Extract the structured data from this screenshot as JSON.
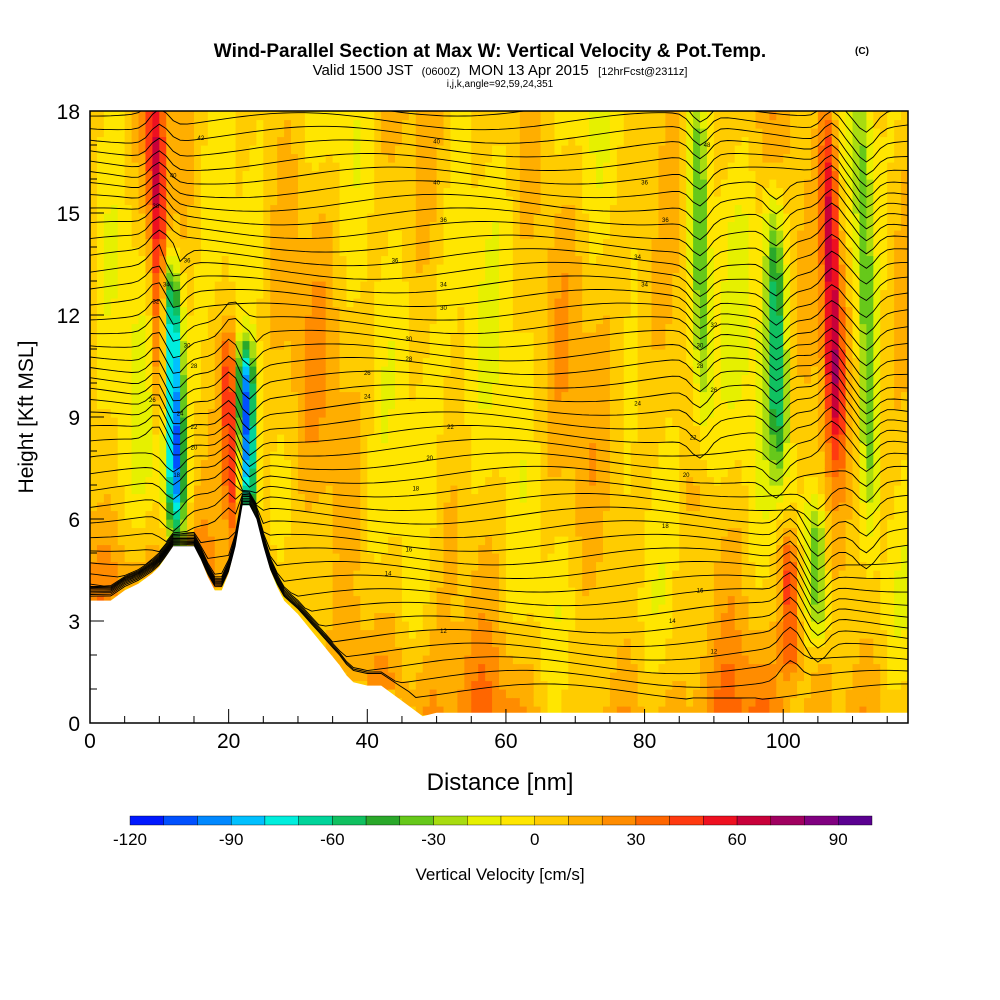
{
  "chart_data": {
    "type": "heatmap",
    "title": "Wind-Parallel Section at Max W: Vertical Velocity & Pot.Temp.",
    "title_mark": "(C)",
    "subtitle_main_1": "Valid 1500 JST",
    "subtitle_utc": "(0600Z)",
    "subtitle_main_2": "MON 13 Apr 2015",
    "subtitle_fcst": "[12hrFcst@2311z]",
    "subtitle_line2": "i,j,k,angle=92,59,24,351",
    "xlabel": "Distance [nm]",
    "ylabel": "Height [Kft MSL]",
    "xlim": [
      0,
      118
    ],
    "ylim": [
      0,
      18
    ],
    "x_ticks": [
      0,
      20,
      40,
      60,
      80,
      100
    ],
    "x_tick_labels": [
      "0",
      "20",
      "40",
      "60",
      "80",
      "100"
    ],
    "y_ticks": [
      0,
      3,
      6,
      9,
      12,
      15,
      18
    ],
    "y_tick_labels": [
      "0",
      "3",
      "6",
      "9",
      "12",
      "15",
      "18"
    ],
    "colorbar": {
      "label": "Vertical Velocity [cm/s]",
      "range": [
        -120,
        100
      ],
      "step": 10,
      "tick_values": [
        -120,
        -90,
        -60,
        -30,
        0,
        30,
        60,
        90
      ],
      "tick_labels": [
        "-120",
        "-90",
        "-60",
        "-30",
        "0",
        "30",
        "60",
        "90"
      ],
      "colors": [
        "#0018ff",
        "#0050ff",
        "#0088ff",
        "#00c0ff",
        "#00eedd",
        "#00d49a",
        "#10c060",
        "#2aa82a",
        "#66c81a",
        "#a8dc10",
        "#e6f000",
        "#ffe600",
        "#ffcc00",
        "#ffae00",
        "#ff8c00",
        "#ff6600",
        "#ff3a10",
        "#ee1020",
        "#c8003a",
        "#a00060",
        "#800080",
        "#5a0090"
      ]
    },
    "velocity_features": [
      {
        "kind": "updraft",
        "x": 10,
        "y_range": [
          9,
          18
        ],
        "peak": 60
      },
      {
        "kind": "downdraft",
        "x": 12,
        "y_range": [
          6,
          13
        ],
        "peak": -110
      },
      {
        "kind": "updraft",
        "x": 20.5,
        "y_range": [
          6.5,
          11
        ],
        "peak": 60
      },
      {
        "kind": "downdraft",
        "x": 22.5,
        "y_range": [
          6.5,
          10.5
        ],
        "peak": -110
      },
      {
        "kind": "downdraft",
        "x": 88,
        "y_range": [
          9,
          18
        ],
        "peak": -40
      },
      {
        "kind": "downdraft",
        "x": 99,
        "y_range": [
          8,
          15
        ],
        "peak": -50
      },
      {
        "kind": "updraft",
        "x": 107,
        "y_range": [
          8.5,
          17.5
        ],
        "peak": 65
      },
      {
        "kind": "downdraft",
        "x": 112,
        "y_range": [
          6,
          18
        ],
        "peak": -40
      },
      {
        "kind": "updraft",
        "x": 101,
        "y_range": [
          2,
          5
        ],
        "peak": 45
      },
      {
        "kind": "downdraft",
        "x": 105,
        "y_range": [
          3,
          6
        ],
        "peak": -40
      }
    ],
    "terrain": {
      "x": [
        0,
        3,
        5,
        7,
        9,
        10,
        11,
        12,
        15,
        16,
        17,
        18,
        19,
        20,
        21,
        22,
        23,
        24,
        25,
        26,
        27,
        28,
        30,
        32,
        34,
        36,
        37,
        38,
        40,
        42,
        44,
        46,
        48,
        50,
        52,
        54,
        118
      ],
      "y": [
        3.6,
        3.6,
        3.9,
        4.1,
        4.4,
        4.6,
        4.9,
        5.2,
        5.2,
        4.8,
        4.3,
        3.9,
        3.9,
        4.4,
        5.2,
        6.4,
        6.4,
        6.0,
        5.2,
        4.5,
        4.0,
        3.6,
        3.2,
        2.7,
        2.2,
        1.7,
        1.4,
        1.2,
        1.1,
        1.1,
        0.8,
        0.5,
        0.2,
        0.3,
        0.3,
        0.3,
        0.3
      ]
    },
    "isentrope_labels": [
      {
        "x": 16,
        "y": 17.2,
        "text": "42"
      },
      {
        "x": 50,
        "y": 17.1,
        "text": "40"
      },
      {
        "x": 89,
        "y": 17.0,
        "text": "48"
      },
      {
        "x": 12,
        "y": 16.1,
        "text": "40"
      },
      {
        "x": 50,
        "y": 15.9,
        "text": "40"
      },
      {
        "x": 80,
        "y": 15.9,
        "text": "36"
      },
      {
        "x": 9.5,
        "y": 15.2,
        "text": "38"
      },
      {
        "x": 51,
        "y": 14.8,
        "text": "36"
      },
      {
        "x": 83,
        "y": 14.8,
        "text": "36"
      },
      {
        "x": 14,
        "y": 13.6,
        "text": "36"
      },
      {
        "x": 44,
        "y": 13.6,
        "text": "36"
      },
      {
        "x": 79,
        "y": 13.7,
        "text": "34"
      },
      {
        "x": 11,
        "y": 12.9,
        "text": "34"
      },
      {
        "x": 51,
        "y": 12.9,
        "text": "34"
      },
      {
        "x": 80,
        "y": 12.9,
        "text": "34"
      },
      {
        "x": 9.5,
        "y": 12.4,
        "text": "32"
      },
      {
        "x": 51,
        "y": 12.2,
        "text": "30"
      },
      {
        "x": 90,
        "y": 11.7,
        "text": "32"
      },
      {
        "x": 14,
        "y": 11.1,
        "text": "30"
      },
      {
        "x": 46,
        "y": 11.3,
        "text": "30"
      },
      {
        "x": 88,
        "y": 11.1,
        "text": "30"
      },
      {
        "x": 15,
        "y": 10.5,
        "text": "28"
      },
      {
        "x": 46,
        "y": 10.7,
        "text": "28"
      },
      {
        "x": 88,
        "y": 10.5,
        "text": "28"
      },
      {
        "x": 40,
        "y": 10.3,
        "text": "26"
      },
      {
        "x": 9,
        "y": 9.5,
        "text": "26"
      },
      {
        "x": 40,
        "y": 9.6,
        "text": "24"
      },
      {
        "x": 90,
        "y": 9.8,
        "text": "26"
      },
      {
        "x": 13,
        "y": 9.1,
        "text": "24"
      },
      {
        "x": 79,
        "y": 9.4,
        "text": "24"
      },
      {
        "x": 15,
        "y": 8.7,
        "text": "22"
      },
      {
        "x": 52,
        "y": 8.7,
        "text": "22"
      },
      {
        "x": 87,
        "y": 8.4,
        "text": "22"
      },
      {
        "x": 15,
        "y": 8.1,
        "text": "20"
      },
      {
        "x": 49,
        "y": 7.8,
        "text": "20"
      },
      {
        "x": 12.5,
        "y": 7.3,
        "text": "18"
      },
      {
        "x": 47,
        "y": 6.9,
        "text": "18"
      },
      {
        "x": 86,
        "y": 7.3,
        "text": "20"
      },
      {
        "x": 83,
        "y": 5.8,
        "text": "18"
      },
      {
        "x": 46,
        "y": 5.1,
        "text": "16"
      },
      {
        "x": 43,
        "y": 4.4,
        "text": "14"
      },
      {
        "x": 88,
        "y": 3.9,
        "text": "16"
      },
      {
        "x": 84,
        "y": 3.0,
        "text": "14"
      },
      {
        "x": 51,
        "y": 2.7,
        "text": "12"
      },
      {
        "x": 90,
        "y": 2.1,
        "text": "12"
      }
    ]
  }
}
